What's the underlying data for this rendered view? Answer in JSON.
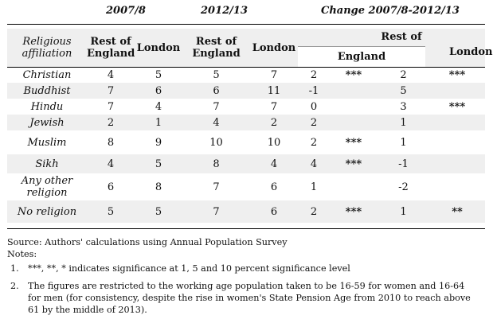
{
  "period_headers": {
    "p1": "2007/8",
    "p2": "2012/13",
    "change": "Change 2007/8-2012/13"
  },
  "col_headers": {
    "religious_affiliation": "Religious affiliation",
    "rest_of_england": "Rest of England",
    "london": "London",
    "rest_of": "Rest of",
    "england": "England"
  },
  "rows": [
    {
      "label": "Christian",
      "roe1": "4",
      "lon1": "5",
      "roe2": "5",
      "lon2": "7",
      "ch_roe": "2",
      "sig_roe": "***",
      "ch_lon": "2",
      "sig_lon": "***"
    },
    {
      "label": "Buddhist",
      "roe1": "7",
      "lon1": "6",
      "roe2": "6",
      "lon2": "11",
      "ch_roe": "-1",
      "sig_roe": "",
      "ch_lon": "5",
      "sig_lon": ""
    },
    {
      "label": "Hindu",
      "roe1": "7",
      "lon1": "4",
      "roe2": "7",
      "lon2": "7",
      "ch_roe": "0",
      "sig_roe": "",
      "ch_lon": "3",
      "sig_lon": "***"
    },
    {
      "label": "Jewish",
      "roe1": "2",
      "lon1": "1",
      "roe2": "4",
      "lon2": "2",
      "ch_roe": "2",
      "sig_roe": "",
      "ch_lon": "1",
      "sig_lon": ""
    },
    {
      "label": "Muslim",
      "roe1": "8",
      "lon1": "9",
      "roe2": "10",
      "lon2": "10",
      "ch_roe": "2",
      "sig_roe": "***",
      "ch_lon": "1",
      "sig_lon": ""
    },
    {
      "label": "Sikh",
      "roe1": "4",
      "lon1": "5",
      "roe2": "8",
      "lon2": "4",
      "ch_roe": "4",
      "sig_roe": "***",
      "ch_lon": "-1",
      "sig_lon": ""
    },
    {
      "label": "Any other religion",
      "roe1": "6",
      "lon1": "8",
      "roe2": "7",
      "lon2": "6",
      "ch_roe": "1",
      "sig_roe": "",
      "ch_lon": "-2",
      "sig_lon": ""
    },
    {
      "label": "No religion",
      "roe1": "5",
      "lon1": "5",
      "roe2": "7",
      "lon2": "6",
      "ch_roe": "2",
      "sig_roe": "***",
      "ch_lon": "1",
      "sig_lon": "**"
    }
  ],
  "source": "Source: Authors' calculations using Annual Population Survey",
  "notes_label": "Notes:",
  "notes": [
    {
      "num": "1.",
      "text": "***, **, * indicates significance at 1, 5 and 10 percent significance level"
    },
    {
      "num": "2.",
      "text": "The figures are restricted to the working age population taken to be 16-59 for women and 16-64 for men (for consistency, despite the rise in women's State Pension Age from 2010 to reach above 61 by the middle of 2013)."
    }
  ]
}
